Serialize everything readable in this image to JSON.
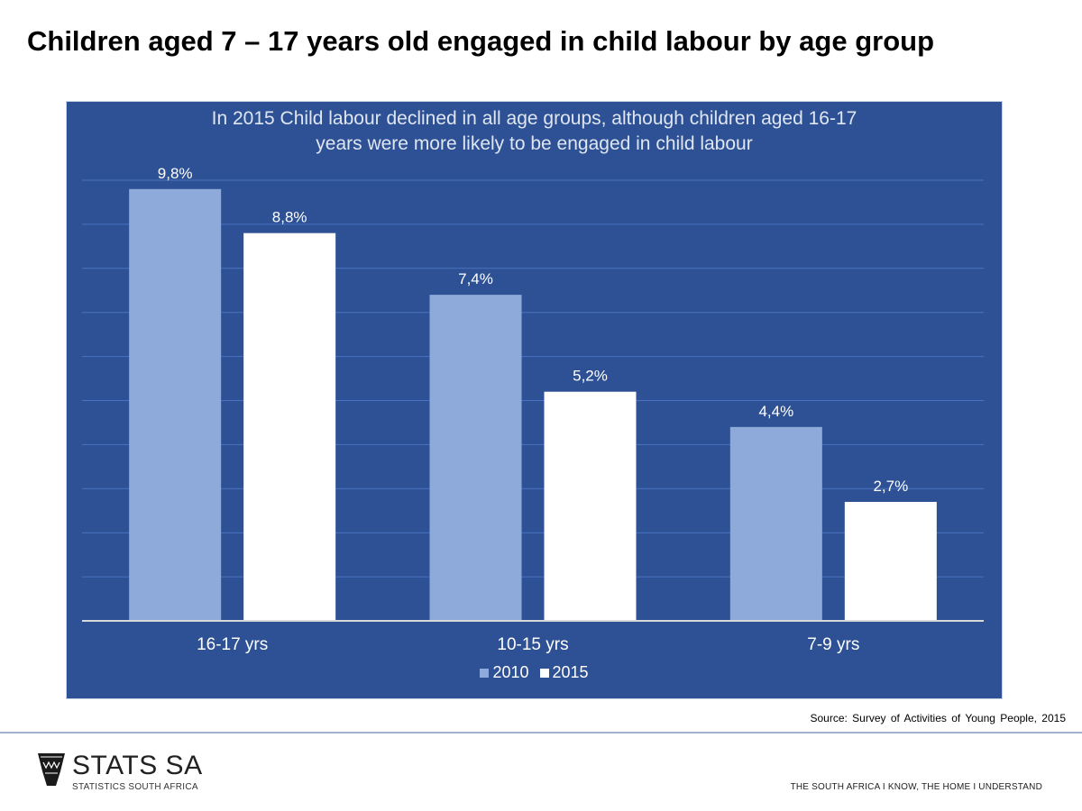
{
  "page": {
    "title": "Children aged 7 – 17 years old engaged in child labour by age group",
    "source": "Source: Survey of Activities of Young People, 2015",
    "logo_main": "STATS SA",
    "logo_sub": "STATISTICS SOUTH AFRICA",
    "tagline": "THE SOUTH AFRICA I KNOW, THE HOME I UNDERSTAND"
  },
  "chart_data": {
    "type": "bar",
    "title_lines": [
      "In 2015 Child labour declined in all age groups, although children aged 16-17",
      "years  were more likely to be engaged in child labour"
    ],
    "categories": [
      "16-17 yrs",
      "10-15 yrs",
      "7-9 yrs"
    ],
    "series": [
      {
        "name": "2010",
        "values": [
          9.8,
          7.4,
          4.4
        ],
        "labels": [
          "9,8%",
          "7,4%",
          "4,4%"
        ],
        "color": "#8eaadb"
      },
      {
        "name": "2015",
        "values": [
          8.8,
          5.2,
          2.7
        ],
        "labels": [
          "8,8%",
          "5,2%",
          "2,7%"
        ],
        "color": "#ffffff"
      }
    ],
    "ylim": [
      0,
      10
    ],
    "grid": true,
    "legend": "bottom-center",
    "colors": {
      "background": "#2d5194",
      "gridline": "#4a72c0",
      "text": "#ffffff"
    }
  }
}
